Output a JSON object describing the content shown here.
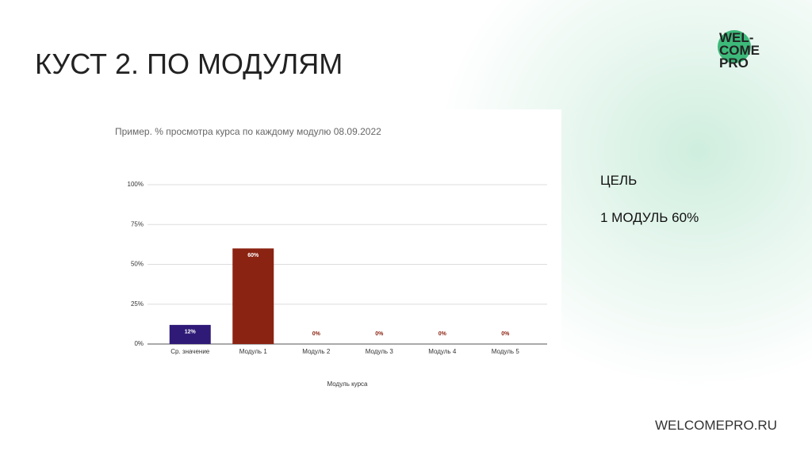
{
  "slide": {
    "title": "КУСТ 2. ПО МОДУЛЯМ",
    "goal_heading": "ЦЕЛЬ",
    "goal_text": "1 МОДУЛЬ 60%",
    "site": "WELCOMEPRO.RU",
    "logo": [
      "WEL-",
      "COME",
      "PRO"
    ]
  },
  "chart_data": {
    "type": "bar",
    "title": "Пример. % просмотра курса по каждому модулю 08.09.2022",
    "x_label": "Модуль курса",
    "categories": [
      "Ср. значение",
      "Модуль 1",
      "Модуль 2",
      "Модуль 3",
      "Модуль 4",
      "Модуль 5"
    ],
    "values": [
      12,
      60,
      0,
      0,
      0,
      0
    ],
    "value_labels": [
      "12%",
      "60%",
      "0%",
      "0%",
      "0%",
      "0%"
    ],
    "colors": [
      "#2f1a78",
      "#8b2312",
      "#8b2312",
      "#8b2312",
      "#8b2312",
      "#8b2312"
    ],
    "ylim": [
      0,
      100
    ],
    "yticks": [
      {
        "value": 0,
        "label": "0%"
      },
      {
        "value": 25,
        "label": "25%"
      },
      {
        "value": 50,
        "label": "50%"
      },
      {
        "value": 75,
        "label": "75%"
      },
      {
        "value": 100,
        "label": "100%"
      }
    ],
    "grid": true
  }
}
